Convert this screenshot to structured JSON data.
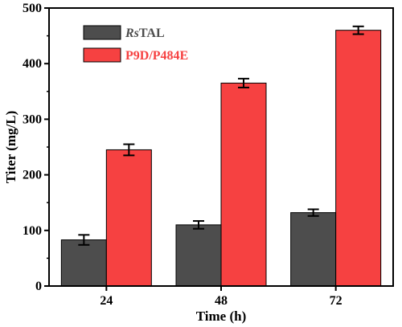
{
  "chart_data": {
    "type": "bar",
    "categories": [
      "24",
      "48",
      "72"
    ],
    "series": [
      {
        "name_prefix": "Rs",
        "name_suffix": "TAL",
        "color": "#4d4d4d",
        "values": [
          83,
          110,
          132
        ],
        "errors": [
          9,
          7,
          6
        ]
      },
      {
        "name": "P9D/P484E",
        "color": "#f64141",
        "values": [
          245,
          365,
          460
        ],
        "errors": [
          10,
          8,
          7
        ]
      }
    ],
    "xlabel": "Time (h)",
    "ylabel": "Titer (mg/L)",
    "ylim": [
      0,
      500
    ],
    "yticks": [
      0,
      100,
      200,
      300,
      400,
      500
    ],
    "legend_position": "top-left",
    "grid": false
  }
}
